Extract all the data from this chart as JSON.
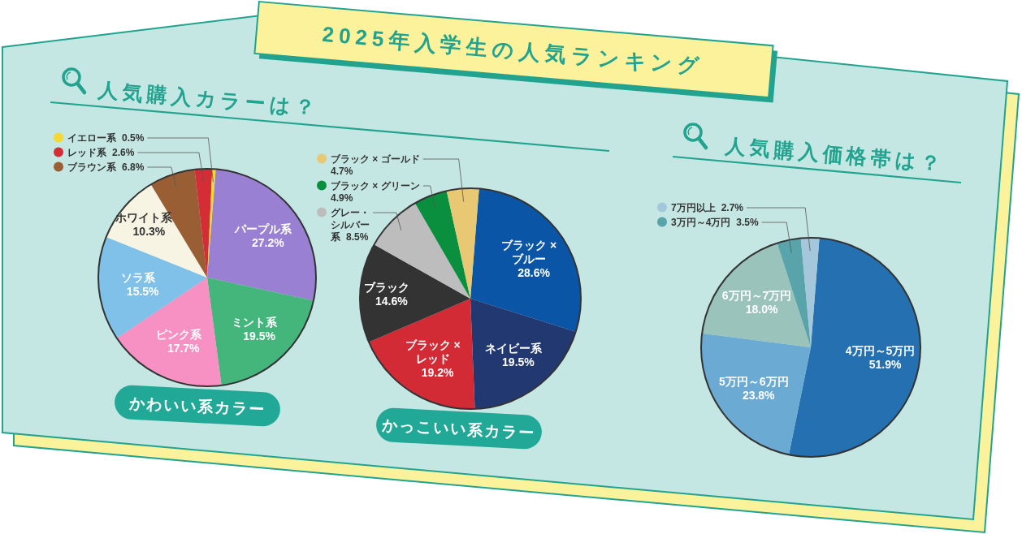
{
  "chart_data": [
    {
      "type": "pie",
      "title": "かわいい系カラー",
      "subtitle": "人気購入カラーは？",
      "annotations": [
        "2025年入学生の人気ランキング"
      ],
      "categories": [
        "パープル系",
        "ミント系",
        "ピンク系",
        "ソラ系",
        "ホワイト系",
        "ブラウン系",
        "レッド系",
        "イエロー系"
      ],
      "values": [
        27.2,
        19.5,
        17.7,
        15.5,
        10.3,
        6.8,
        2.6,
        0.5
      ],
      "colors": [
        "#9a80d2",
        "#44b57b",
        "#f790c3",
        "#80c1e9",
        "#f8f4e3",
        "#9a5e35",
        "#d42d36",
        "#f6d833"
      ],
      "value_labels": [
        "27.2%",
        "19.5%",
        "17.7%",
        "15.5%",
        "10.3%",
        "6.8%",
        "2.6%",
        "0.5%"
      ],
      "legend": "top left"
    },
    {
      "type": "pie",
      "title": "かっこいい系カラー",
      "categories": [
        "ブラック × ブルー",
        "ネイビー系",
        "ブラック × レッド",
        "ブラック",
        "グレー・シルバー系",
        "ブラック × グリーン",
        "ブラック × ゴールド"
      ],
      "values": [
        28.6,
        19.5,
        19.2,
        14.6,
        8.5,
        4.9,
        4.7
      ],
      "colors": [
        "#0a55a6",
        "#223871",
        "#d22b35",
        "#333333",
        "#bdbdbd",
        "#0a8f3f",
        "#e9c874"
      ],
      "value_labels": [
        "28.6%",
        "19.5%",
        "19.2%",
        "14.6%",
        "8.5%",
        "4.9%",
        "4.7%"
      ],
      "legend": "top left"
    },
    {
      "type": "pie",
      "title": "人気購入価格帯は？",
      "categories": [
        "4万円～5万円",
        "5万円～6万円",
        "6万円～7万円",
        "3万円～4万円",
        "7万円以上"
      ],
      "values": [
        51.9,
        23.8,
        18.0,
        3.5,
        2.7
      ],
      "colors": [
        "#2470b0",
        "#6aaad3",
        "#99c3bb",
        "#59a4ab",
        "#a5c7db"
      ],
      "value_labels": [
        "51.9%",
        "23.8%",
        "18.0%",
        "3.5%",
        "2.7%"
      ],
      "legend": "top left"
    }
  ]
}
